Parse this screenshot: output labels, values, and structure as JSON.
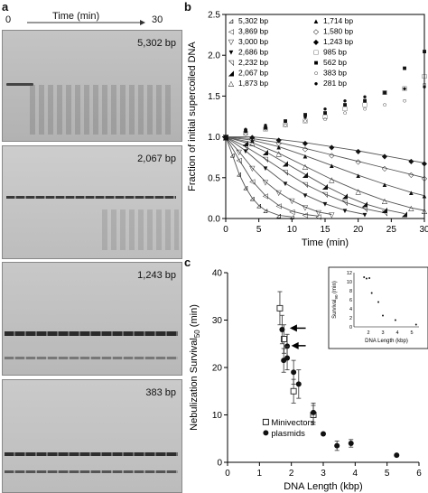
{
  "panels": {
    "a": "a",
    "b": "b",
    "c": "c"
  },
  "gel_header": {
    "start": "0",
    "title": "Time (min)",
    "end": "30"
  },
  "gels": [
    {
      "label": "5,302 bp"
    },
    {
      "label": "2,067 bp"
    },
    {
      "label": "1,243 bp"
    },
    {
      "label": "383 bp"
    }
  ],
  "chart_data": [
    {
      "type": "line",
      "panel": "b",
      "xlabel": "Time (min)",
      "ylabel": "Fraction of initial supercoiled DNA",
      "xlim": [
        0,
        30
      ],
      "ylim": [
        0,
        2.5
      ],
      "xticks": [
        "0",
        "5",
        "10",
        "15",
        "20",
        "25",
        "30"
      ],
      "yticks": [
        "0.0",
        "0.5",
        "1.0",
        "1.5",
        "2.0",
        "2.5"
      ],
      "legend": [
        {
          "marker": "⊿",
          "name": "5,302 bp"
        },
        {
          "marker": "▲",
          "name": "1,714 bp"
        },
        {
          "marker": "◁",
          "name": "3,869 bp"
        },
        {
          "marker": "◇",
          "name": "1,580 bp"
        },
        {
          "marker": "▽",
          "name": "3,000 bp"
        },
        {
          "marker": "◆",
          "name": "1,243 bp"
        },
        {
          "marker": "▼",
          "name": "2,686 bp"
        },
        {
          "marker": "□",
          "name": "985 bp"
        },
        {
          "marker": "◹",
          "name": "2,232 bp"
        },
        {
          "marker": "■",
          "name": "562 bp"
        },
        {
          "marker": "◢",
          "name": "2,067 bp"
        },
        {
          "marker": "○",
          "name": "383 bp"
        },
        {
          "marker": "△",
          "name": "1,873 bp"
        },
        {
          "marker": "●",
          "name": "281 bp"
        }
      ],
      "series": [
        {
          "name": "5,302 bp",
          "x": [
            0,
            1,
            2,
            3,
            4,
            5,
            6,
            8,
            10
          ],
          "values": [
            1.0,
            0.78,
            0.55,
            0.38,
            0.25,
            0.16,
            0.1,
            0.04,
            0.02
          ]
        },
        {
          "name": "3,869 bp",
          "x": [
            0,
            2,
            4,
            6,
            8,
            10,
            12,
            14
          ],
          "values": [
            1.0,
            0.72,
            0.46,
            0.28,
            0.16,
            0.09,
            0.05,
            0.03
          ]
        },
        {
          "name": "3,000 bp",
          "x": [
            0,
            2,
            4,
            6,
            8,
            10,
            12,
            14,
            16
          ],
          "values": [
            1.0,
            0.82,
            0.62,
            0.45,
            0.32,
            0.22,
            0.14,
            0.08,
            0.05
          ]
        },
        {
          "name": "2,686 bp",
          "x": [
            0,
            3,
            6,
            9,
            12,
            15,
            18,
            21
          ],
          "values": [
            1.0,
            0.83,
            0.62,
            0.43,
            0.29,
            0.18,
            0.1,
            0.05
          ]
        },
        {
          "name": "2,232 bp",
          "x": [
            0,
            3,
            6,
            9,
            12,
            15,
            18,
            21,
            24
          ],
          "values": [
            1.0,
            0.88,
            0.73,
            0.57,
            0.42,
            0.3,
            0.2,
            0.12,
            0.07
          ]
        },
        {
          "name": "2,067 bp",
          "x": [
            0,
            3,
            6,
            9,
            12,
            15,
            18,
            21,
            24,
            27
          ],
          "values": [
            1.0,
            0.93,
            0.82,
            0.68,
            0.54,
            0.4,
            0.28,
            0.18,
            0.11,
            0.06
          ]
        },
        {
          "name": "1,873 bp",
          "x": [
            0,
            4,
            8,
            12,
            16,
            20,
            24,
            28,
            30
          ],
          "values": [
            1.0,
            0.93,
            0.8,
            0.64,
            0.48,
            0.34,
            0.22,
            0.13,
            0.1
          ]
        },
        {
          "name": "1,714 bp",
          "x": [
            0,
            4,
            8,
            12,
            16,
            20,
            24,
            28,
            30
          ],
          "values": [
            1.0,
            0.96,
            0.88,
            0.77,
            0.65,
            0.53,
            0.42,
            0.32,
            0.28
          ]
        },
        {
          "name": "1,580 bp",
          "x": [
            0,
            4,
            8,
            12,
            16,
            20,
            24,
            28,
            30
          ],
          "values": [
            1.0,
            0.98,
            0.93,
            0.86,
            0.78,
            0.7,
            0.62,
            0.54,
            0.5
          ]
        },
        {
          "name": "1,243 bp",
          "x": [
            0,
            4,
            8,
            12,
            16,
            20,
            24,
            28,
            30
          ],
          "values": [
            1.0,
            1.0,
            0.97,
            0.93,
            0.88,
            0.83,
            0.77,
            0.71,
            0.68
          ]
        },
        {
          "name": "985 bp",
          "x": [
            0,
            3,
            6,
            9,
            12,
            15,
            18,
            21,
            24,
            27,
            30
          ],
          "values": [
            1.0,
            1.05,
            1.1,
            1.15,
            1.2,
            1.25,
            1.35,
            1.4,
            1.55,
            1.6,
            1.75
          ]
        },
        {
          "name": "562 bp",
          "x": [
            0,
            3,
            6,
            9,
            12,
            15,
            18,
            21,
            24,
            27,
            30
          ],
          "values": [
            1.0,
            1.08,
            1.12,
            1.2,
            1.28,
            1.3,
            1.4,
            1.45,
            1.55,
            1.85,
            2.05
          ]
        },
        {
          "name": "383 bp",
          "x": [
            0,
            3,
            6,
            9,
            12,
            15,
            18,
            21,
            24,
            27,
            30
          ],
          "values": [
            1.0,
            1.04,
            1.1,
            1.15,
            1.2,
            1.22,
            1.3,
            1.35,
            1.4,
            1.45,
            1.65
          ]
        },
        {
          "name": "281 bp",
          "x": [
            0,
            3,
            6,
            9,
            12,
            15,
            18,
            21,
            24,
            27,
            30
          ],
          "values": [
            1.0,
            1.1,
            1.15,
            1.2,
            1.25,
            1.35,
            1.45,
            1.5,
            1.55,
            1.6,
            1.62
          ]
        }
      ]
    },
    {
      "type": "scatter",
      "panel": "c",
      "xlabel": "DNA Length (kbp)",
      "ylabel": "Nebulization Survival",
      "ylabel_sub": "50",
      "ylabel_unit": " (min)",
      "xlim": [
        0,
        6
      ],
      "ylim": [
        0,
        40
      ],
      "xticks": [
        "0",
        "1",
        "2",
        "3",
        "4",
        "5",
        "6"
      ],
      "yticks": [
        "0",
        "10",
        "20",
        "30",
        "40"
      ],
      "legend": [
        {
          "marker": "open-square",
          "name": "Minivectors"
        },
        {
          "marker": "filled-circle",
          "name": "plasmids"
        }
      ],
      "series": [
        {
          "name": "Minivectors",
          "x": [
            1.64,
            1.77,
            2.07,
            2.69
          ],
          "values": [
            32.5,
            26.0,
            15.0,
            10.0
          ],
          "err": [
            3.5,
            3.0,
            2.5,
            2.0
          ]
        },
        {
          "name": "plasmids",
          "x": [
            1.71,
            1.76,
            1.87,
            1.87,
            2.07,
            2.23,
            2.69,
            3.0,
            3.43,
            3.87,
            5.3
          ],
          "values": [
            28.0,
            21.5,
            24.5,
            22.0,
            19.0,
            16.5,
            10.5,
            6.0,
            3.5,
            4.0,
            1.5
          ],
          "err": [
            3.0,
            2.5,
            2.5,
            2.5,
            2.5,
            3.0,
            2.0,
            0,
            1.0,
            0.8,
            0
          ]
        }
      ],
      "inset": {
        "ylabel": "Survival",
        "ylabel_sub": "90",
        "ylabel_unit": " (min)",
        "xlabel": "DNA Length (kbp)",
        "xlim": [
          1,
          5.5
        ],
        "ylim": [
          0,
          12
        ],
        "xticks": [
          "2",
          "3",
          "4",
          "5"
        ],
        "yticks": [
          "0",
          "2",
          "4",
          "6",
          "8",
          "10",
          "12"
        ],
        "x": [
          1.7,
          1.87,
          2.07,
          2.23,
          2.69,
          3.0,
          3.87,
          5.3
        ],
        "values": [
          11.0,
          10.7,
          10.8,
          7.5,
          5.5,
          2.5,
          1.5,
          0.5
        ]
      }
    }
  ]
}
